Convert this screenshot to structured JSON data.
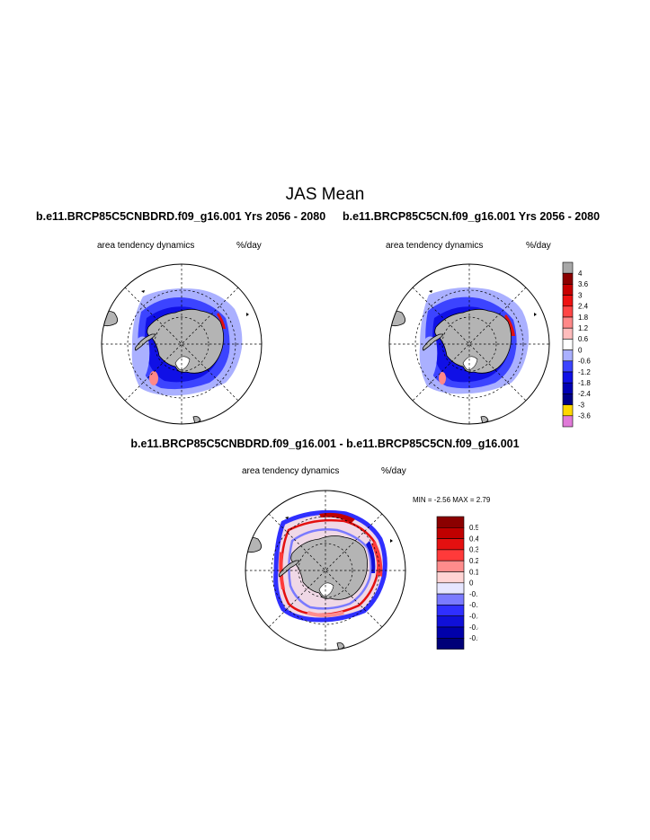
{
  "main_title": "JAS Mean",
  "panel_left": {
    "title": "b.e11.BRCP85C5CNBDRD.f09_g16.001  Yrs 2056 - 2080",
    "field": "area tendency dynamics",
    "units": "%/day"
  },
  "panel_right": {
    "title": "b.e11.BRCP85C5CN.f09_g16.001  Yrs 2056 - 2080",
    "field": "area tendency dynamics",
    "units": "%/day"
  },
  "panel_diff": {
    "title": "b.e11.BRCP85C5CNBDRD.f09_g16.001 - b.e11.BRCP85C5CN.f09_g16.001",
    "field": "area tendency dynamics",
    "units": "%/day",
    "min_label": "MIN =",
    "min_value": "-2.56",
    "max_label": "MAX =",
    "max_value": "2.79"
  },
  "colorbar_top": {
    "labels": [
      "4",
      "3.6",
      "3",
      "2.4",
      "1.8",
      "1.2",
      "0.6",
      "0",
      "-0.6",
      "-1.2",
      "-1.8",
      "-2.4",
      "-3",
      "-3.6"
    ],
    "colors": [
      "#a8a8a8",
      "#8b0000",
      "#c80000",
      "#ee1111",
      "#ff4545",
      "#ff8888",
      "#ffbcbc",
      "#ffffff",
      "#aab0ff",
      "#3c44ff",
      "#1010e6",
      "#0000b4",
      "#000088",
      "#ffd700",
      "#e07ad8"
    ]
  },
  "colorbar_diff": {
    "labels": [
      "0.5",
      "0.4",
      "0.3",
      "0.2",
      "0.1",
      "0",
      "-0.1",
      "-0.2",
      "-0.3",
      "-0.4",
      "-0.5"
    ],
    "colors": [
      "#8b0000",
      "#c00000",
      "#e41010",
      "#ff3a3a",
      "#ff8c8c",
      "#ffd4d4",
      "#e6e6ff",
      "#7a7aff",
      "#2f2fff",
      "#1010d8",
      "#0000aa",
      "#000078"
    ]
  },
  "map_colors": {
    "land": "#b4b4b4",
    "ocean": "#ffffff",
    "ice_light": "#aab0ff",
    "ice_medium": "#3c44ff",
    "ice_dark": "#1010e6",
    "positive": "#ff7a7a",
    "positive_strong": "#e01010"
  }
}
